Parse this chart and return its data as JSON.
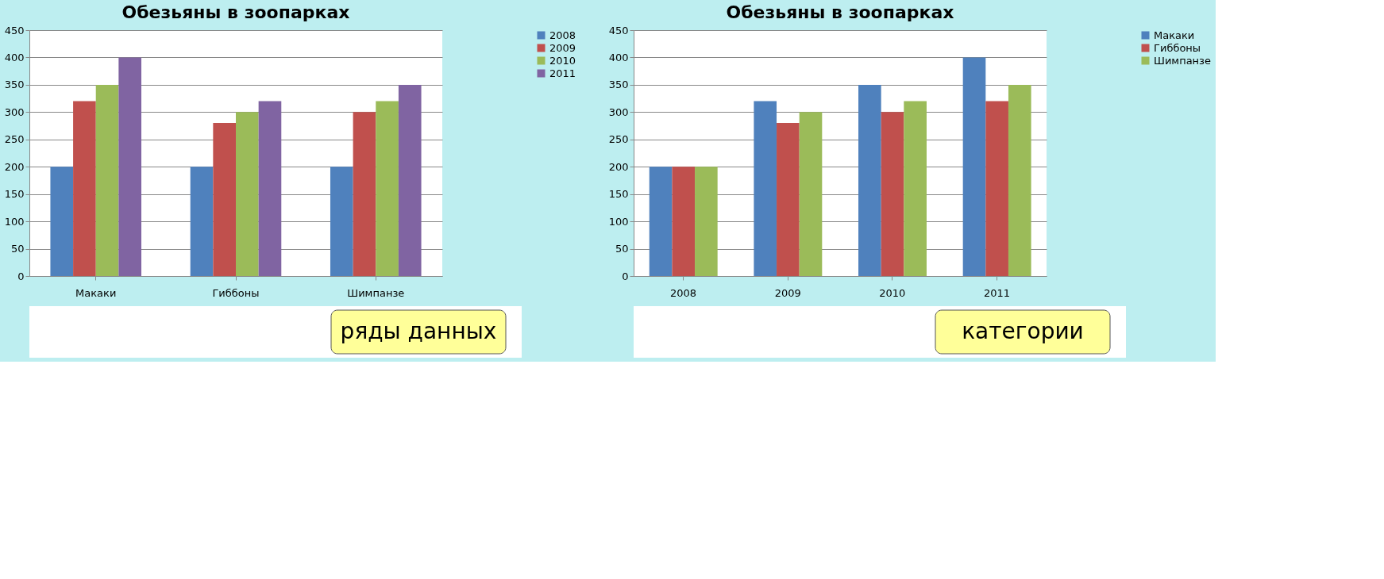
{
  "chart_data": [
    {
      "type": "bar",
      "title": "Обезьяны в зоопарках",
      "categories": [
        "Макаки",
        "Гиббоны",
        "Шимпанзе"
      ],
      "series": [
        {
          "name": "2008",
          "color": "#4f81bd",
          "values": [
            200,
            200,
            200
          ]
        },
        {
          "name": "2009",
          "color": "#c0504d",
          "values": [
            320,
            280,
            300
          ]
        },
        {
          "name": "2010",
          "color": "#9bbb59",
          "values": [
            350,
            300,
            320
          ]
        },
        {
          "name": "2011",
          "color": "#8064a2",
          "values": [
            400,
            320,
            350
          ]
        }
      ],
      "ylim": [
        0,
        450
      ],
      "yticks": [
        0,
        50,
        100,
        150,
        200,
        250,
        300,
        350,
        400,
        450
      ],
      "grid": "y",
      "legend": "right",
      "annotations": [
        "ряды данных"
      ]
    },
    {
      "type": "bar",
      "title": "Обезьяны в зоопарках",
      "categories": [
        "2008",
        "2009",
        "2010",
        "2011"
      ],
      "series": [
        {
          "name": "Макаки",
          "color": "#4f81bd",
          "values": [
            200,
            320,
            350,
            400
          ]
        },
        {
          "name": "Гиббоны",
          "color": "#c0504d",
          "values": [
            200,
            280,
            300,
            320
          ]
        },
        {
          "name": "Шимпанзе",
          "color": "#9bbb59",
          "values": [
            200,
            300,
            320,
            350
          ]
        }
      ],
      "ylim": [
        0,
        450
      ],
      "yticks": [
        0,
        50,
        100,
        150,
        200,
        250,
        300,
        350,
        400,
        450
      ],
      "grid": "y",
      "legend": "right",
      "annotations": [
        "категории"
      ]
    }
  ]
}
